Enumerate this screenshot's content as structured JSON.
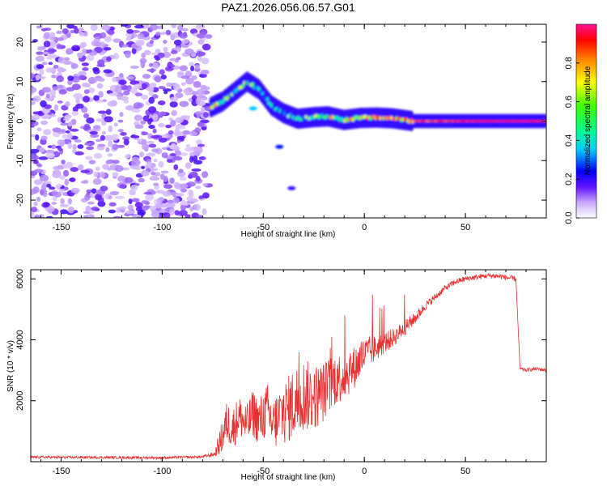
{
  "title": "PAZ1.2026.056.06.57.G01",
  "chart_data": [
    {
      "type": "heatmap",
      "xlabel": "Height of straight line (km)",
      "ylabel": "Frequency (Hz)",
      "xlim": [
        -165,
        90
      ],
      "ylim": [
        -24.5,
        24.5
      ],
      "xticks": [
        -150,
        -100,
        -50,
        0,
        50
      ],
      "xtick_labels": [
        "-150",
        "-100",
        "-50",
        "0",
        "50"
      ],
      "yticks": [
        -20,
        -10,
        0,
        10,
        20
      ],
      "ytick_labels": [
        "-20",
        "-10",
        "0",
        "10",
        "20"
      ],
      "colorbar": {
        "label": "Normalized spectral amplitude",
        "range": [
          0,
          1
        ],
        "ticks": [
          0.0,
          0.2,
          0.4,
          0.6,
          0.8
        ],
        "tick_labels": [
          "0.0",
          "0.2",
          "0.4",
          "0.6",
          "0.8"
        ]
      },
      "noise_region": {
        "x": [
          -165,
          -77
        ],
        "level": 0.08
      },
      "ridge": [
        {
          "x": -76,
          "f": 3.5,
          "amp": 0.6
        },
        {
          "x": -70,
          "f": 5.0,
          "amp": 0.55
        },
        {
          "x": -64,
          "f": 7.5,
          "amp": 0.4
        },
        {
          "x": -58,
          "f": 10.0,
          "amp": 0.5
        },
        {
          "x": -52,
          "f": 8.0,
          "amp": 0.35
        },
        {
          "x": -46,
          "f": 4.0,
          "amp": 0.45
        },
        {
          "x": -40,
          "f": 2.0,
          "amp": 0.4
        },
        {
          "x": -33,
          "f": 0.6,
          "amp": 0.45
        },
        {
          "x": -25,
          "f": 1.0,
          "amp": 0.6
        },
        {
          "x": -18,
          "f": 1.2,
          "amp": 0.55
        },
        {
          "x": -10,
          "f": 0.3,
          "amp": 0.65
        },
        {
          "x": -2,
          "f": 0.8,
          "amp": 0.7
        },
        {
          "x": 6,
          "f": 0.9,
          "amp": 0.75
        },
        {
          "x": 14,
          "f": 0.7,
          "amp": 0.8
        },
        {
          "x": 24,
          "f": 0.0,
          "amp": 0.85
        },
        {
          "x": 50,
          "f": 0.0,
          "amp": 0.95
        },
        {
          "x": 75,
          "f": 0.0,
          "amp": 0.98
        },
        {
          "x": 90,
          "f": 0.0,
          "amp": 0.95
        }
      ],
      "secondary_features": [
        {
          "x": -55,
          "f": 3.2,
          "amp": 0.35
        },
        {
          "x": -42,
          "f": -6.5,
          "amp": 0.25
        },
        {
          "x": -36,
          "f": -17,
          "amp": 0.2
        }
      ]
    },
    {
      "type": "line",
      "xlabel": "Height of straight line (km)",
      "ylabel": "SNR (10 * v/v)",
      "xlim": [
        -165,
        90
      ],
      "ylim": [
        0,
        6300
      ],
      "xticks": [
        -150,
        -100,
        -50,
        0,
        50
      ],
      "xtick_labels": [
        "-150",
        "-100",
        "-50",
        "0",
        "50"
      ],
      "yticks": [
        2000,
        4000,
        6000
      ],
      "ytick_labels": [
        "2000",
        "4000",
        "6000"
      ],
      "series": [
        {
          "name": "SNR",
          "color": "#e83030",
          "x": [
            -165,
            -130,
            -100,
            -80,
            -74,
            -71,
            -68,
            -65,
            -62,
            -58,
            -55,
            -52,
            -48,
            -45,
            -42,
            -38,
            -35,
            -30,
            -25,
            -20,
            -15,
            -10,
            -5,
            0,
            5,
            10,
            15,
            20,
            25,
            30,
            35,
            40,
            45,
            50,
            55,
            60,
            65,
            70,
            75,
            76,
            77,
            80,
            85,
            90
          ],
          "y": [
            150,
            140,
            130,
            160,
            250,
            700,
            1300,
            1100,
            1500,
            1200,
            1600,
            1300,
            1700,
            1200,
            1500,
            1700,
            1900,
            2200,
            2100,
            2300,
            2700,
            2800,
            3100,
            3500,
            3700,
            3900,
            4100,
            4400,
            4700,
            5100,
            5400,
            5700,
            5900,
            6000,
            6050,
            6100,
            6100,
            6050,
            6000,
            4500,
            3050,
            3000,
            3050,
            3000
          ],
          "noise": [
            40,
            40,
            40,
            40,
            80,
            500,
            700,
            700,
            700,
            700,
            800,
            800,
            900,
            900,
            1000,
            1100,
            1200,
            1200,
            1100,
            1000,
            900,
            800,
            700,
            600,
            450,
            350,
            300,
            250,
            200,
            150,
            120,
            100,
            100,
            90,
            90,
            90,
            90,
            90,
            90,
            0,
            60,
            60,
            60,
            60
          ]
        }
      ]
    }
  ]
}
